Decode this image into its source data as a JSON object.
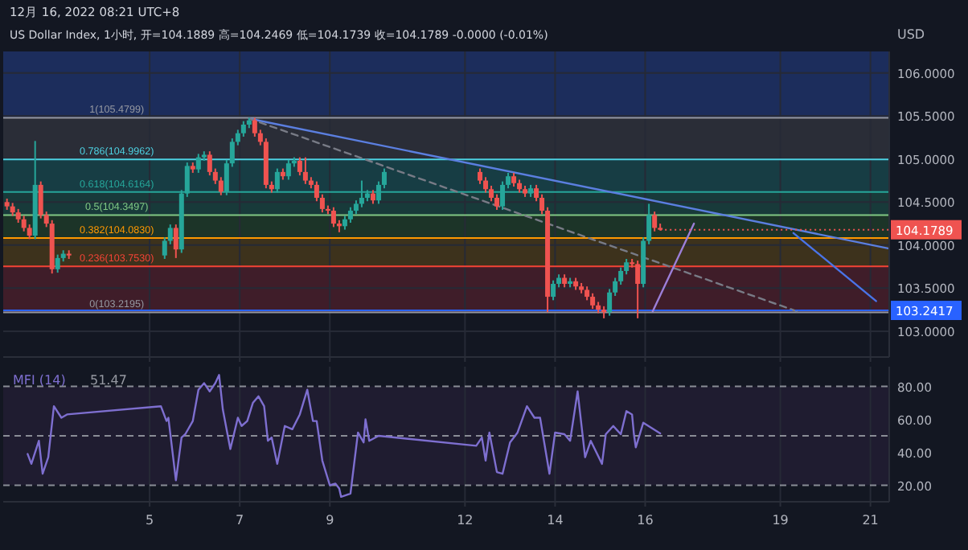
{
  "chart_data": [
    {
      "type": "candlestick",
      "title": "12月 16, 2022 08:21 UTC+8",
      "subtitle": "US Dollar Index, 1小时, 开=104.1889 高=104.2469 低=104.1739 收=104.1789 -0.0000 (-0.01%)",
      "ylabel": "USD",
      "x": [
        "2022-12-01T20:00",
        "2022-12-01T23:00",
        "2022-12-02T02:00",
        "2022-12-02T05:00",
        "2022-12-02T08:00",
        "2022-12-02T11:00",
        "2022-12-02T14:00",
        "2022-12-02T17:00",
        "2022-12-02T20:00",
        "2022-12-02T23:00",
        "2022-12-03T02:00",
        "2022-12-03T05:00",
        "2022-12-05T08:00",
        "2022-12-05T11:00",
        "2022-12-05T14:00",
        "2022-12-05T17:00",
        "2022-12-05T20:00",
        "2022-12-05T23:00",
        "2022-12-06T02:00",
        "2022-12-06T05:00",
        "2022-12-06T08:00",
        "2022-12-06T11:00",
        "2022-12-06T14:00",
        "2022-12-06T17:00",
        "2022-12-06T20:00",
        "2022-12-06T23:00",
        "2022-12-07T02:00",
        "2022-12-07T05:00",
        "2022-12-07T08:00",
        "2022-12-07T11:00",
        "2022-12-07T14:00",
        "2022-12-07T17:00",
        "2022-12-07T20:00",
        "2022-12-07T23:00",
        "2022-12-08T02:00",
        "2022-12-08T05:00",
        "2022-12-08T08:00",
        "2022-12-08T11:00",
        "2022-12-08T14:00",
        "2022-12-08T17:00",
        "2022-12-08T20:00",
        "2022-12-08T23:00",
        "2022-12-09T02:00",
        "2022-12-09T05:00",
        "2022-12-09T08:00",
        "2022-12-09T11:00",
        "2022-12-09T14:00",
        "2022-12-09T17:00",
        "2022-12-09T20:00",
        "2022-12-09T23:00",
        "2022-12-10T02:00",
        "2022-12-10T05:00",
        "2022-12-12T08:00",
        "2022-12-12T11:00",
        "2022-12-12T14:00",
        "2022-12-12T17:00",
        "2022-12-12T20:00",
        "2022-12-12T23:00",
        "2022-12-13T02:00",
        "2022-12-13T05:00",
        "2022-12-13T08:00",
        "2022-12-13T11:00",
        "2022-12-13T14:00",
        "2022-12-13T17:00",
        "2022-12-13T20:00",
        "2022-12-13T23:00",
        "2022-12-14T02:00",
        "2022-12-14T05:00",
        "2022-12-14T08:00",
        "2022-12-14T11:00",
        "2022-12-14T14:00",
        "2022-12-14T17:00",
        "2022-12-14T20:00",
        "2022-12-14T23:00",
        "2022-12-15T02:00",
        "2022-12-15T05:00",
        "2022-12-15T08:00",
        "2022-12-15T11:00",
        "2022-12-15T14:00",
        "2022-12-15T17:00",
        "2022-12-15T20:00",
        "2022-12-15T23:00",
        "2022-12-16T02:00",
        "2022-12-16T05:00",
        "2022-12-16T08:00"
      ],
      "ohlc": [
        [
          104.5,
          104.54,
          104.41,
          104.45
        ],
        [
          104.45,
          104.49,
          104.34,
          104.38
        ],
        [
          104.38,
          104.42,
          104.26,
          104.3
        ],
        [
          104.3,
          104.34,
          104.16,
          104.2
        ],
        [
          104.2,
          104.24,
          104.07,
          104.11
        ],
        [
          104.11,
          105.21,
          104.07,
          104.7
        ],
        [
          104.7,
          104.74,
          104.31,
          104.35
        ],
        [
          104.35,
          104.39,
          104.21,
          104.25
        ],
        [
          104.25,
          104.29,
          103.67,
          103.72
        ],
        [
          103.72,
          103.89,
          103.68,
          103.85
        ],
        [
          103.85,
          103.94,
          103.81,
          103.9
        ],
        [
          103.9,
          103.94,
          103.84,
          103.88
        ],
        [
          103.88,
          104.09,
          103.84,
          104.05
        ],
        [
          104.05,
          104.24,
          104.01,
          104.2
        ],
        [
          104.2,
          104.24,
          103.85,
          103.95
        ],
        [
          103.95,
          104.64,
          103.91,
          104.6
        ],
        [
          104.6,
          104.96,
          104.56,
          104.92
        ],
        [
          104.92,
          104.96,
          104.84,
          104.88
        ],
        [
          104.88,
          105.06,
          104.84,
          105.02
        ],
        [
          105.02,
          105.09,
          104.98,
          105.05
        ],
        [
          105.05,
          105.09,
          104.81,
          104.85
        ],
        [
          104.85,
          104.89,
          104.71,
          104.75
        ],
        [
          104.75,
          104.79,
          104.58,
          104.62
        ],
        [
          104.62,
          104.99,
          104.58,
          104.95
        ],
        [
          104.95,
          105.24,
          104.91,
          105.2
        ],
        [
          105.2,
          105.34,
          105.16,
          105.3
        ],
        [
          105.3,
          105.44,
          105.26,
          105.4
        ],
        [
          105.4,
          105.48,
          105.36,
          105.45
        ],
        [
          105.45,
          105.48,
          105.26,
          105.3
        ],
        [
          105.3,
          105.34,
          105.16,
          105.2
        ],
        [
          105.2,
          105.24,
          104.66,
          104.7
        ],
        [
          104.7,
          104.74,
          104.61,
          104.65
        ],
        [
          104.65,
          104.89,
          104.61,
          104.85
        ],
        [
          104.85,
          104.89,
          104.76,
          104.8
        ],
        [
          104.8,
          104.99,
          104.76,
          104.95
        ],
        [
          104.95,
          105.02,
          104.91,
          104.98
        ],
        [
          104.98,
          105.02,
          104.81,
          104.85
        ],
        [
          104.85,
          105.02,
          104.71,
          104.75
        ],
        [
          104.75,
          104.79,
          104.66,
          104.7
        ],
        [
          104.7,
          104.74,
          104.51,
          104.55
        ],
        [
          104.55,
          104.59,
          104.38,
          104.42
        ],
        [
          104.42,
          104.46,
          104.36,
          104.4
        ],
        [
          104.4,
          104.44,
          104.21,
          104.25
        ],
        [
          104.25,
          104.29,
          104.15,
          104.22
        ],
        [
          104.22,
          104.34,
          104.18,
          104.3
        ],
        [
          104.3,
          104.44,
          104.26,
          104.4
        ],
        [
          104.4,
          104.52,
          104.36,
          104.48
        ],
        [
          104.48,
          104.75,
          104.44,
          104.55
        ],
        [
          104.55,
          104.64,
          104.51,
          104.6
        ],
        [
          104.6,
          104.64,
          104.48,
          104.52
        ],
        [
          104.52,
          104.74,
          104.48,
          104.7
        ],
        [
          104.7,
          104.89,
          104.66,
          104.85
        ],
        [
          104.85,
          104.89,
          104.71,
          104.75
        ],
        [
          104.75,
          104.79,
          104.61,
          104.65
        ],
        [
          104.65,
          104.69,
          104.51,
          104.55
        ],
        [
          104.55,
          104.59,
          104.41,
          104.45
        ],
        [
          104.45,
          104.74,
          104.41,
          104.7
        ],
        [
          104.7,
          104.84,
          104.66,
          104.8
        ],
        [
          104.8,
          104.84,
          104.68,
          104.72
        ],
        [
          104.72,
          104.76,
          104.61,
          104.65
        ],
        [
          104.65,
          104.69,
          104.56,
          104.6
        ],
        [
          104.6,
          104.7,
          104.56,
          104.66
        ],
        [
          104.66,
          104.7,
          104.51,
          104.55
        ],
        [
          104.55,
          104.59,
          104.36,
          104.4
        ],
        [
          104.4,
          104.44,
          103.22,
          103.4
        ],
        [
          103.4,
          103.59,
          103.36,
          103.55
        ],
        [
          103.55,
          103.66,
          103.51,
          103.62
        ],
        [
          103.62,
          103.66,
          103.51,
          103.55
        ],
        [
          103.55,
          103.62,
          103.51,
          103.58
        ],
        [
          103.58,
          103.62,
          103.48,
          103.52
        ],
        [
          103.52,
          103.56,
          103.44,
          103.48
        ],
        [
          103.48,
          103.52,
          103.36,
          103.4
        ],
        [
          103.4,
          103.44,
          103.26,
          103.3
        ],
        [
          103.3,
          103.34,
          103.21,
          103.25
        ],
        [
          103.25,
          103.29,
          103.15,
          103.22
        ],
        [
          103.22,
          103.49,
          103.18,
          103.45
        ],
        [
          103.45,
          103.62,
          103.41,
          103.58
        ],
        [
          103.58,
          103.74,
          103.54,
          103.7
        ],
        [
          103.7,
          103.84,
          103.66,
          103.8
        ],
        [
          103.8,
          103.84,
          103.74,
          103.78
        ],
        [
          103.78,
          103.82,
          103.15,
          103.55
        ],
        [
          103.55,
          104.09,
          103.51,
          104.05
        ],
        [
          104.05,
          104.48,
          104.01,
          104.35
        ],
        [
          104.35,
          104.39,
          104.16,
          104.2
        ],
        [
          104.2,
          104.25,
          104.17,
          104.1789
        ]
      ],
      "series": [
        {
          "type": "line",
          "color": "#5b7fe0",
          "x": [
            "2022-12-07T05:00",
            "2022-12-21T10:00"
          ],
          "values": [
            105.47,
            103.96
          ]
        },
        {
          "type": "line",
          "color": "#787b86",
          "line_style": "dashed",
          "x": [
            "2022-12-07T05:00",
            "2022-12-19T09:00"
          ],
          "values": [
            105.47,
            103.23
          ]
        },
        {
          "type": "line",
          "color": "#9c7fd8",
          "x": [
            "2022-12-16T04:00",
            "2022-12-17T02:00"
          ],
          "values": [
            103.23,
            104.25
          ]
        },
        {
          "type": "line",
          "color": "#4a74e8",
          "x": [
            "2022-12-19T07:00",
            "2022-12-21T03:00"
          ],
          "values": [
            104.14,
            103.35
          ]
        }
      ],
      "bands": [
        {
          "axis": "y",
          "from": 105.4799,
          "to": 106.25,
          "color": "#1c2d5c"
        },
        {
          "axis": "y",
          "from": 104.9962,
          "to": 105.4799,
          "color": "#2a2d37"
        },
        {
          "axis": "y",
          "from": 104.6164,
          "to": 104.9962,
          "color": "#173d44"
        },
        {
          "axis": "y",
          "from": 104.3497,
          "to": 104.6164,
          "color": "#183a3a"
        },
        {
          "axis": "y",
          "from": 104.083,
          "to": 104.3497,
          "color": "#1c3428"
        },
        {
          "axis": "y",
          "from": 103.753,
          "to": 104.083,
          "color": "#3d321c"
        },
        {
          "axis": "y",
          "from": 103.2195,
          "to": 103.753,
          "color": "#3f1d29"
        }
      ],
      "ref_lines": [
        {
          "axis": "y",
          "value": 105.4799,
          "label": "1(105.4799)",
          "color": "#9598a1"
        },
        {
          "axis": "y",
          "value": 104.9962,
          "label": "0.786(104.9962)",
          "color": "#4dd0e1"
        },
        {
          "axis": "y",
          "value": 104.6164,
          "label": "0.618(104.6164)",
          "color": "#26a69a"
        },
        {
          "axis": "y",
          "value": 104.3497,
          "label": "0.5(104.3497)",
          "color": "#81c784"
        },
        {
          "axis": "y",
          "value": 104.083,
          "label": "0.382(104.0830)",
          "color": "#ff9800"
        },
        {
          "axis": "y",
          "value": 103.753,
          "label": "0.236(103.7530)",
          "color": "#f44336"
        },
        {
          "axis": "y",
          "value": 103.2195,
          "label": "0(103.2195)",
          "color": "#9598a1"
        },
        {
          "axis": "y",
          "value": 103.2417,
          "color": "#2962ff"
        }
      ],
      "annotations": [
        {
          "text": "104.1789",
          "x": "2022-12-16T08:00",
          "y": 104.1789
        },
        {
          "text": "103.2417",
          "x": "2022-12-16T08:00",
          "y": 103.2417
        }
      ],
      "xlim": [
        "2022-12-01T18:00",
        "2022-12-21T10:00"
      ],
      "ylim": [
        102.7,
        106.25
      ],
      "xticks": [
        {
          "value": "2022-12-05",
          "label": null
        },
        {
          "value": "2022-12-07",
          "label": null
        },
        {
          "value": "2022-12-09",
          "label": null
        },
        {
          "value": "2022-12-12",
          "label": null
        },
        {
          "value": "2022-12-14",
          "label": null
        },
        {
          "value": "2022-12-16",
          "label": null
        },
        {
          "value": "2022-12-19",
          "label": null
        },
        {
          "value": "2022-12-21",
          "label": null
        }
      ],
      "yticks": [
        {
          "value": 103,
          "label": "103.0000"
        },
        {
          "value": 103.5,
          "label": "103.5000"
        },
        {
          "value": 104,
          "label": "104.0000"
        },
        {
          "value": 104.5,
          "label": "104.5000"
        },
        {
          "value": 105,
          "label": "105.0000"
        },
        {
          "value": 105.5,
          "label": "105.5000"
        },
        {
          "value": 106,
          "label": "106.0000"
        }
      ],
      "grid": true,
      "tick_labels": "y"
    },
    {
      "type": "line",
      "legend": "top left",
      "annotations": [
        "51.47"
      ],
      "series": [
        {
          "name": "MFI (14)",
          "color": "#7e6fd0",
          "x": [
            "2022-12-02T07:00",
            "2022-12-02T09:00",
            "2022-12-02T13:00",
            "2022-12-02T15:00",
            "2022-12-02T18:00",
            "2022-12-02T21:00",
            "2022-12-03T01:00",
            "2022-12-03T04:00",
            "2022-12-05T06:00",
            "2022-12-05T09:00",
            "2022-12-05T10:00",
            "2022-12-05T14:00",
            "2022-12-05T17:00",
            "2022-12-05T19:00",
            "2022-12-05T23:00",
            "2022-12-06T02:00",
            "2022-12-06T05:00",
            "2022-12-06T08:00",
            "2022-12-06T11:00",
            "2022-12-06T13:00",
            "2022-12-06T15:00",
            "2022-12-06T19:00",
            "2022-12-06T23:00",
            "2022-12-07T01:00",
            "2022-12-07T04:00",
            "2022-12-07T07:00",
            "2022-12-07T10:00",
            "2022-12-07T13:00",
            "2022-12-07T15:00",
            "2022-12-07T17:00",
            "2022-12-07T20:00",
            "2022-12-08T00:00",
            "2022-12-08T04:00",
            "2022-12-08T08:00",
            "2022-12-08T12:00",
            "2022-12-08T15:00",
            "2022-12-08T17:00",
            "2022-12-08T20:00",
            "2022-12-09T00:00",
            "2022-12-09T03:00",
            "2022-12-09T05:00",
            "2022-12-09T06:00",
            "2022-12-09T11:00",
            "2022-12-09T15:00",
            "2022-12-09T18:00",
            "2022-12-09T19:00",
            "2022-12-09T21:00",
            "2022-12-10T02:00",
            "2022-12-12T06:00",
            "2022-12-12T09:00",
            "2022-12-12T11:00",
            "2022-12-12T13:00",
            "2022-12-12T17:00",
            "2022-12-12T20:00",
            "2022-12-13T00:00",
            "2022-12-13T04:00",
            "2022-12-13T09:00",
            "2022-12-13T13:00",
            "2022-12-13T16:00",
            "2022-12-13T21:00",
            "2022-12-14T00:00",
            "2022-12-14T05:00",
            "2022-12-14T08:00",
            "2022-12-14T12:00",
            "2022-12-14T16:00",
            "2022-12-14T19:00",
            "2022-12-15T01:00",
            "2022-12-15T03:00",
            "2022-12-15T07:00",
            "2022-12-15T11:00",
            "2022-12-15T14:00",
            "2022-12-15T17:00",
            "2022-12-15T18:00",
            "2022-12-15T19:00",
            "2022-12-15T23:00",
            "2022-12-16T08:00"
          ],
          "values": [
            39,
            33,
            47,
            27,
            37,
            68,
            61,
            63,
            68,
            59,
            61,
            23,
            49,
            51,
            59,
            78,
            82,
            77,
            82,
            87,
            66,
            42,
            61,
            56,
            59,
            70,
            74,
            68,
            47,
            49,
            33,
            56,
            54,
            63,
            78,
            59,
            59,
            35,
            20,
            21,
            18,
            13,
            15,
            52,
            46,
            60,
            47,
            50,
            44,
            49,
            35,
            52,
            28,
            27,
            46,
            52,
            68,
            61,
            61,
            27,
            52,
            51,
            47,
            77,
            37,
            47,
            33,
            51,
            56,
            51,
            65,
            63,
            51,
            43,
            58,
            51.47
          ]
        }
      ],
      "bands": [
        {
          "axis": "y",
          "from": 20,
          "to": 80,
          "color": "#1f1c30"
        }
      ],
      "ref_lines": [
        {
          "axis": "y",
          "value": 80,
          "color": "#8a8d96",
          "line_style": "dashed"
        },
        {
          "axis": "y",
          "value": 50,
          "color": "#8a8d96",
          "line_style": "dashed"
        },
        {
          "axis": "y",
          "value": 20,
          "color": "#8a8d96",
          "line_style": "dashed"
        }
      ],
      "xlim": [
        "2022-12-01T18:00",
        "2022-12-21T10:00"
      ],
      "ylim": [
        10,
        92
      ],
      "xticks": [
        {
          "value": "2022-12-05",
          "label": "5"
        },
        {
          "value": "2022-12-07",
          "label": "7"
        },
        {
          "value": "2022-12-09",
          "label": "9"
        },
        {
          "value": "2022-12-12",
          "label": "12"
        },
        {
          "value": "2022-12-14",
          "label": "14"
        },
        {
          "value": "2022-12-16",
          "label": "16"
        },
        {
          "value": "2022-12-19",
          "label": "19"
        },
        {
          "value": "2022-12-21",
          "label": "21"
        }
      ],
      "yticks": [
        {
          "value": 20,
          "label": "20.00"
        },
        {
          "value": 40,
          "label": "40.00"
        },
        {
          "value": 60,
          "label": "60.00"
        },
        {
          "value": 80,
          "label": "80.00"
        }
      ],
      "grid": "x"
    }
  ]
}
